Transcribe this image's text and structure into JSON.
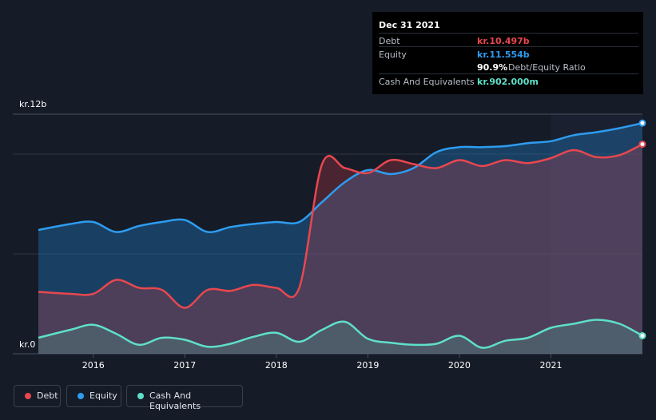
{
  "tooltip": {
    "date": "Dec 31 2021",
    "rows": [
      {
        "label": "Debt",
        "value": "kr.10.497b",
        "color": "#e8474f"
      },
      {
        "label": "Equity",
        "value": "kr.11.554b",
        "color": "#2e9cf0"
      },
      {
        "label": "",
        "value": "90.9%",
        "suffix": "Debt/Equity Ratio",
        "color": "#ffffff"
      },
      {
        "label": "Cash And Equivalents",
        "value": "kr.902.000m",
        "color": "#5fe0c8"
      }
    ]
  },
  "legend": [
    {
      "label": "Debt",
      "color": "#e8474f"
    },
    {
      "label": "Equity",
      "color": "#2e9cf0"
    },
    {
      "label": "Cash And Equivalents",
      "color": "#5fe0c8"
    }
  ],
  "chart_data": {
    "type": "area",
    "y_axis_labels": [
      "kr.12b",
      "kr.0"
    ],
    "ylim": [
      0,
      12
    ],
    "xlim": [
      2015.4,
      2022.0
    ],
    "x_ticks": [
      {
        "value": 2016,
        "label": "2016"
      },
      {
        "value": 2017,
        "label": "2017"
      },
      {
        "value": 2018,
        "label": "2018"
      },
      {
        "value": 2019,
        "label": "2019"
      },
      {
        "value": 2020,
        "label": "2020"
      },
      {
        "value": 2021,
        "label": "2021"
      }
    ],
    "grid": true,
    "series": [
      {
        "name": "Equity",
        "color": "#2e9cf0",
        "x": [
          2015.4,
          2015.75,
          2016.0,
          2016.25,
          2016.5,
          2016.75,
          2017.0,
          2017.25,
          2017.5,
          2017.75,
          2018.0,
          2018.25,
          2018.5,
          2018.75,
          2019.0,
          2019.25,
          2019.5,
          2019.75,
          2020.0,
          2020.25,
          2020.5,
          2020.75,
          2021.0,
          2021.25,
          2021.5,
          2021.75,
          2022.0
        ],
        "values": [
          6.2,
          6.5,
          6.6,
          6.1,
          6.4,
          6.6,
          6.7,
          6.1,
          6.35,
          6.5,
          6.6,
          6.6,
          7.6,
          8.6,
          9.2,
          9.0,
          9.3,
          10.1,
          10.35,
          10.35,
          10.4,
          10.55,
          10.65,
          10.95,
          11.1,
          11.3,
          11.554
        ]
      },
      {
        "name": "Debt",
        "color": "#e8474f",
        "x": [
          2015.4,
          2015.75,
          2016.0,
          2016.25,
          2016.5,
          2016.75,
          2017.0,
          2017.25,
          2017.5,
          2017.75,
          2018.0,
          2018.25,
          2018.5,
          2018.75,
          2019.0,
          2019.25,
          2019.5,
          2019.75,
          2020.0,
          2020.25,
          2020.5,
          2020.75,
          2021.0,
          2021.25,
          2021.5,
          2021.75,
          2022.0
        ],
        "values": [
          3.1,
          3.0,
          3.0,
          3.7,
          3.3,
          3.2,
          2.3,
          3.2,
          3.15,
          3.45,
          3.3,
          3.3,
          9.5,
          9.3,
          9.05,
          9.7,
          9.5,
          9.3,
          9.7,
          9.4,
          9.7,
          9.55,
          9.8,
          10.2,
          9.85,
          9.95,
          10.497
        ]
      },
      {
        "name": "Cash And Equivalents",
        "color": "#5fe0c8",
        "x": [
          2015.4,
          2015.75,
          2016.0,
          2016.25,
          2016.5,
          2016.75,
          2017.0,
          2017.25,
          2017.5,
          2017.75,
          2018.0,
          2018.25,
          2018.5,
          2018.75,
          2019.0,
          2019.25,
          2019.5,
          2019.75,
          2020.0,
          2020.25,
          2020.5,
          2020.75,
          2021.0,
          2021.25,
          2021.5,
          2021.75,
          2022.0
        ],
        "values": [
          0.8,
          1.2,
          1.45,
          1.0,
          0.45,
          0.8,
          0.7,
          0.35,
          0.5,
          0.85,
          1.05,
          0.6,
          1.2,
          1.6,
          0.75,
          0.55,
          0.45,
          0.5,
          0.9,
          0.3,
          0.65,
          0.8,
          1.3,
          1.5,
          1.7,
          1.5,
          0.902
        ]
      }
    ]
  }
}
